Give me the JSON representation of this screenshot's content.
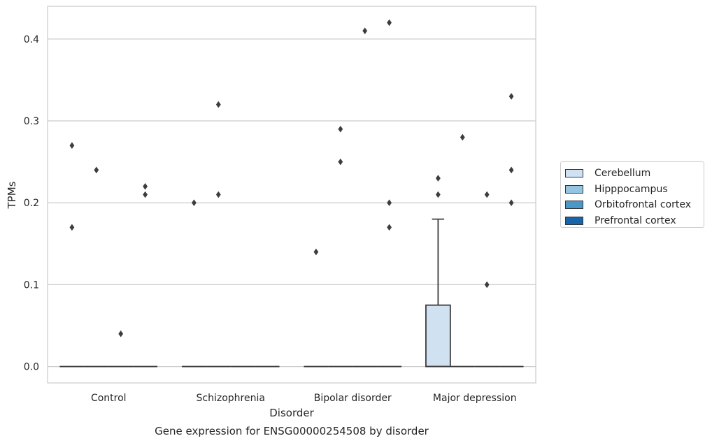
{
  "chart_data": {
    "type": "box",
    "title": "Gene expression for ENSG00000254508 by disorder",
    "xlabel": "Disorder",
    "ylabel": "TPMs",
    "ylim": [
      -0.02,
      0.44
    ],
    "yticks": [
      0.0,
      0.1,
      0.2,
      0.3,
      0.4
    ],
    "ytick_labels": [
      "0.0",
      "0.1",
      "0.2",
      "0.3",
      "0.4"
    ],
    "grid": "horizontal",
    "legend_placement": "center-right-outside",
    "categories": [
      "Control",
      "Schizophrenia",
      "Bipolar disorder",
      "Major depression"
    ],
    "series": [
      {
        "name": "Cerebellum",
        "color": "#d0e1f2",
        "boxes": [
          {
            "q1": 0,
            "median": 0,
            "q3": 0,
            "whisker_low": 0,
            "whisker_high": 0,
            "outliers": [
              0.17,
              0.27
            ]
          },
          {
            "q1": 0,
            "median": 0,
            "q3": 0,
            "whisker_low": 0,
            "whisker_high": 0,
            "outliers": [
              0.2
            ]
          },
          {
            "q1": 0,
            "median": 0,
            "q3": 0,
            "whisker_low": 0,
            "whisker_high": 0,
            "outliers": [
              0.14
            ]
          },
          {
            "q1": 0,
            "median": 0,
            "q3": 0.075,
            "whisker_low": 0,
            "whisker_high": 0.18,
            "outliers": [
              0.21,
              0.23
            ]
          }
        ]
      },
      {
        "name": "Hipppocampus",
        "color": "#94c4df",
        "boxes": [
          {
            "q1": 0,
            "median": 0,
            "q3": 0,
            "whisker_low": 0,
            "whisker_high": 0,
            "outliers": [
              0.24
            ]
          },
          {
            "q1": 0,
            "median": 0,
            "q3": 0,
            "whisker_low": 0,
            "whisker_high": 0,
            "outliers": [
              0.21,
              0.32
            ]
          },
          {
            "q1": 0,
            "median": 0,
            "q3": 0,
            "whisker_low": 0,
            "whisker_high": 0,
            "outliers": [
              0.25,
              0.29
            ]
          },
          {
            "q1": 0,
            "median": 0,
            "q3": 0,
            "whisker_low": 0,
            "whisker_high": 0,
            "outliers": [
              0.28
            ]
          }
        ]
      },
      {
        "name": "Orbitofrontal cortex",
        "color": "#4a98c9",
        "boxes": [
          {
            "q1": 0,
            "median": 0,
            "q3": 0,
            "whisker_low": 0,
            "whisker_high": 0,
            "outliers": [
              0.04
            ]
          },
          {
            "q1": 0,
            "median": 0,
            "q3": 0,
            "whisker_low": 0,
            "whisker_high": 0,
            "outliers": []
          },
          {
            "q1": 0,
            "median": 0,
            "q3": 0,
            "whisker_low": 0,
            "whisker_high": 0,
            "outliers": [
              0.41
            ]
          },
          {
            "q1": 0,
            "median": 0,
            "q3": 0,
            "whisker_low": 0,
            "whisker_high": 0,
            "outliers": [
              0.1,
              0.21
            ]
          }
        ]
      },
      {
        "name": "Prefrontal cortex",
        "color": "#1764ab",
        "boxes": [
          {
            "q1": 0,
            "median": 0,
            "q3": 0,
            "whisker_low": 0,
            "whisker_high": 0,
            "outliers": [
              0.21,
              0.22
            ]
          },
          {
            "q1": 0,
            "median": 0,
            "q3": 0,
            "whisker_low": 0,
            "whisker_high": 0,
            "outliers": []
          },
          {
            "q1": 0,
            "median": 0,
            "q3": 0,
            "whisker_low": 0,
            "whisker_high": 0,
            "outliers": [
              0.17,
              0.2,
              0.42
            ]
          },
          {
            "q1": 0,
            "median": 0,
            "q3": 0,
            "whisker_low": 0,
            "whisker_high": 0,
            "outliers": [
              0.2,
              0.24,
              0.33
            ]
          }
        ]
      }
    ]
  }
}
